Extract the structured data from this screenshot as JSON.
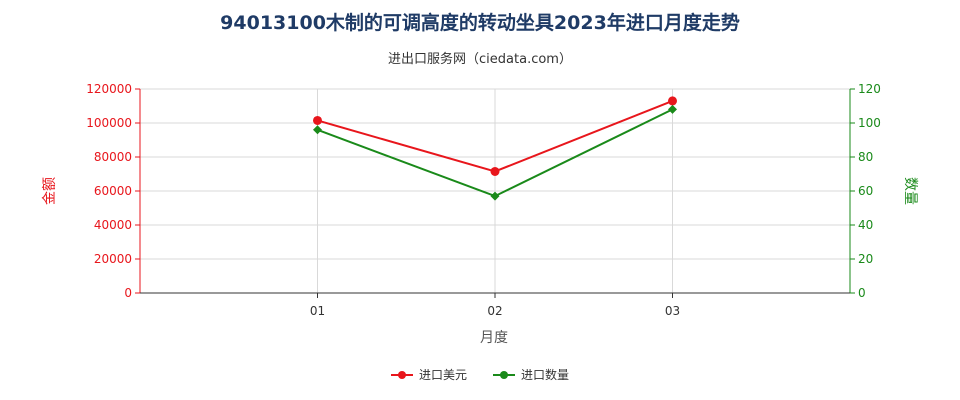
{
  "title": "94013100木制的可调高度的转动坐具2023年进口月度走势",
  "subtitle": "进出口服务网（ciedata.com）",
  "colors": {
    "amount": "#e8161c",
    "quantity": "#1a8a1a",
    "grid": "#d9d9d9",
    "axis": "#333333"
  },
  "chart_data": {
    "type": "line",
    "categories": [
      "01",
      "02",
      "03"
    ],
    "xlabel": "月度",
    "ylabel_left": "金额",
    "ylabel_right": "数量",
    "ylim_left": [
      0,
      120000
    ],
    "ylim_right": [
      0,
      120
    ],
    "yticks_left": [
      "0",
      "20000",
      "40000",
      "60000",
      "80000",
      "100000",
      "120000"
    ],
    "yticks_right": [
      "0",
      "20",
      "40",
      "60",
      "80",
      "100",
      "120"
    ],
    "grid": true,
    "legend_position": "bottom",
    "series": [
      {
        "name": "进口美元",
        "axis": "left",
        "values": [
          101500,
          71500,
          113000
        ]
      },
      {
        "name": "进口数量",
        "axis": "right",
        "values": [
          96,
          57,
          108
        ]
      }
    ]
  }
}
